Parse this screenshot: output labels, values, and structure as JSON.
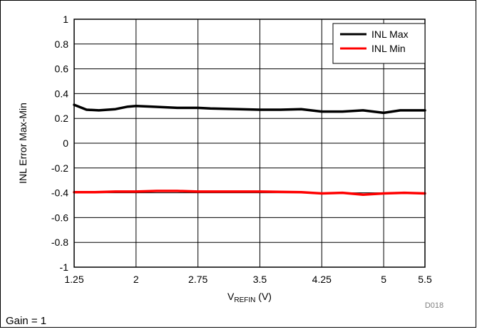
{
  "chart_data": {
    "type": "line",
    "xlabel_main": "V",
    "xlabel_sub": "REFIN",
    "xlabel_unit": " (V)",
    "ylabel": "INL Error Max-Min",
    "xlim": [
      1.25,
      5.5
    ],
    "ylim": [
      -1,
      1
    ],
    "x_ticks": [
      1.25,
      2,
      2.75,
      3.5,
      4.25,
      5,
      5.5
    ],
    "x_tick_labels": [
      "1.25",
      "2",
      "2.75",
      "3.5",
      "4.25",
      "5",
      "5.5"
    ],
    "y_ticks": [
      -1,
      -0.8,
      -0.6,
      -0.4,
      -0.2,
      0,
      0.2,
      0.4,
      0.6,
      0.8,
      1
    ],
    "y_tick_labels": [
      "-1",
      "-0.8",
      "-0.6",
      "-0.4",
      "-0.2",
      "0",
      "0.2",
      "0.4",
      "0.6",
      "0.8",
      "1"
    ],
    "grid": true,
    "legend_position": "top-right",
    "series": [
      {
        "name": "INL Max",
        "color": "#000000",
        "x": [
          1.25,
          1.4,
          1.55,
          1.75,
          1.9,
          2.0,
          2.2,
          2.5,
          2.75,
          2.9,
          3.25,
          3.5,
          3.75,
          4.0,
          4.25,
          4.5,
          4.75,
          5.0,
          5.2,
          5.5
        ],
        "y": [
          0.31,
          0.27,
          0.265,
          0.275,
          0.295,
          0.3,
          0.295,
          0.285,
          0.285,
          0.28,
          0.275,
          0.27,
          0.27,
          0.275,
          0.255,
          0.255,
          0.265,
          0.245,
          0.265,
          0.265
        ]
      },
      {
        "name": "INL Min",
        "color": "#ff0000",
        "x": [
          1.25,
          1.5,
          1.75,
          2.0,
          2.25,
          2.5,
          2.75,
          3.0,
          3.5,
          4.0,
          4.25,
          4.5,
          4.75,
          5.0,
          5.25,
          5.5
        ],
        "y": [
          -0.395,
          -0.395,
          -0.39,
          -0.39,
          -0.385,
          -0.385,
          -0.39,
          -0.39,
          -0.39,
          -0.395,
          -0.405,
          -0.4,
          -0.415,
          -0.405,
          -0.4,
          -0.405
        ]
      }
    ]
  },
  "footnote_code": "D018",
  "condition": "Gain = 1"
}
